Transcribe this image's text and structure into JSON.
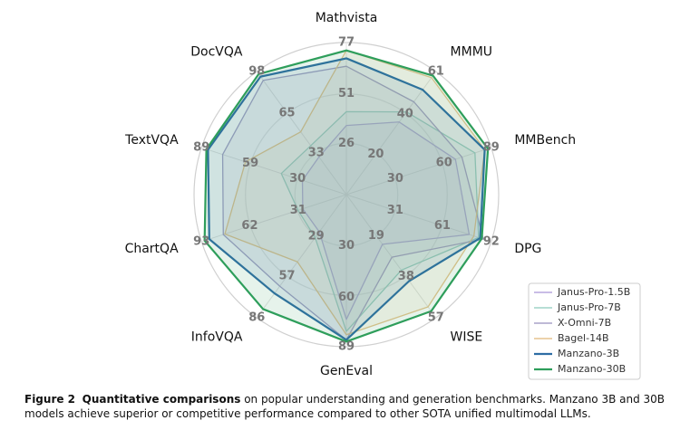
{
  "chart_data": {
    "type": "radar",
    "axes": [
      {
        "name": "Mathvista",
        "lim": [
          0,
          77
        ],
        "ticks": [
          26,
          51,
          77
        ]
      },
      {
        "name": "MMMU",
        "lim": [
          0,
          61
        ],
        "ticks": [
          20,
          40,
          61
        ]
      },
      {
        "name": "MMBench",
        "lim": [
          0,
          89
        ],
        "ticks": [
          30,
          60,
          89
        ]
      },
      {
        "name": "DPG",
        "lim": [
          0,
          92
        ],
        "ticks": [
          31,
          61,
          92
        ]
      },
      {
        "name": "WISE",
        "lim": [
          0,
          57
        ],
        "ticks": [
          19,
          38,
          57
        ]
      },
      {
        "name": "GenEval",
        "lim": [
          0,
          89
        ],
        "ticks": [
          30,
          60,
          89
        ]
      },
      {
        "name": "InfoVQA",
        "lim": [
          0,
          86
        ],
        "ticks": [
          29,
          57,
          86
        ]
      },
      {
        "name": "ChartQA",
        "lim": [
          0,
          93
        ],
        "ticks": [
          31,
          62,
          93
        ]
      },
      {
        "name": "TextVQA",
        "lim": [
          0,
          89
        ],
        "ticks": [
          30,
          59,
          89
        ]
      },
      {
        "name": "DocVQA",
        "lim": [
          0,
          98
        ],
        "ticks": [
          33,
          65,
          98
        ]
      }
    ],
    "series": [
      {
        "name": "Janus-Pro-1.5B",
        "color": "#b7a6dd",
        "values": [
          35,
          36,
          67,
          78,
          23,
          73,
          26,
          28,
          27,
          30
        ]
      },
      {
        "name": "Janus-Pro-7B",
        "color": "#9fd3c7",
        "values": [
          42,
          41,
          79,
          84,
          35,
          80,
          30,
          31,
          40,
          39
        ]
      },
      {
        "name": "X-Omni-7B",
        "color": "#a9a2c8",
        "values": [
          65,
          46,
          71,
          87,
          29,
          85,
          64,
          79,
          76,
          91
        ]
      },
      {
        "name": "Bagel-14B",
        "color": "#e6c48f",
        "values": [
          73,
          58,
          85,
          81,
          52,
          82,
          47,
          78,
          62,
          50
        ]
      },
      {
        "name": "Manzano-3B",
        "color": "#2e6da4",
        "values": [
          69,
          52,
          85,
          85,
          40,
          85,
          69,
          88,
          85,
          94
        ]
      },
      {
        "name": "Manzano-30B",
        "color": "#2e9e5b",
        "values": [
          73,
          59,
          87,
          86,
          54,
          86,
          80,
          91,
          86,
          96
        ]
      }
    ],
    "legend": "lower right"
  },
  "caption": {
    "label": "Figure 2",
    "bold": "Quantitative comparisons",
    "text": "on popular understanding and generation benchmarks. Manzano 3B and 30B models achieve superior or competitive performance compared to other SOTA unified multimodal LLMs."
  }
}
